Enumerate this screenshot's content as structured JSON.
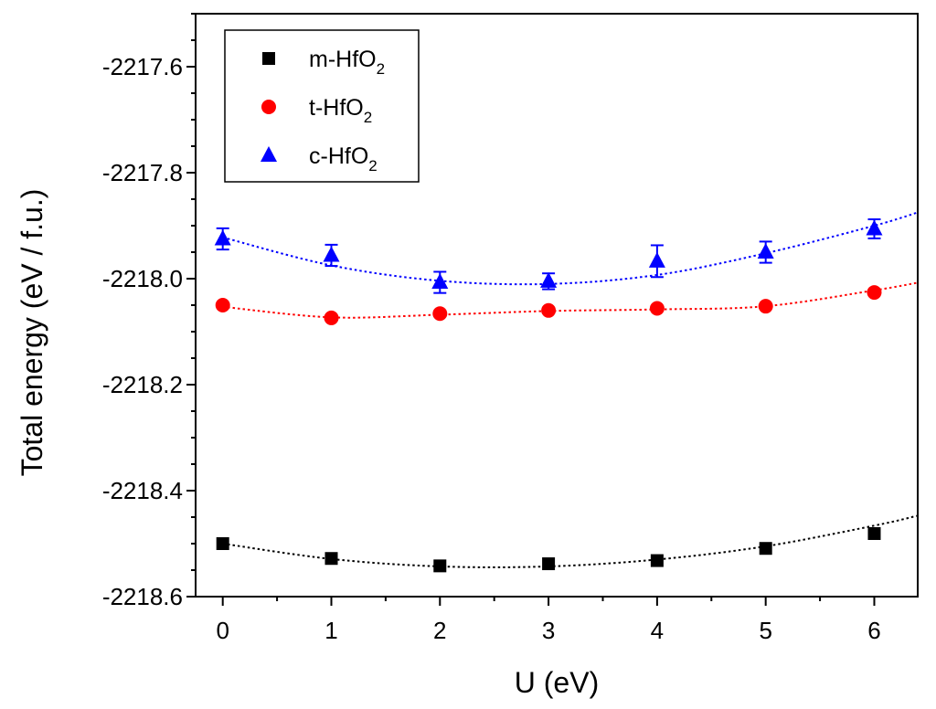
{
  "chart_data": {
    "type": "scatter",
    "xlabel": "U (eV)",
    "ylabel": "Total energy (eV / f.u.)",
    "xlim": [
      -0.25,
      6.4
    ],
    "ylim": [
      -2218.6,
      -2217.5
    ],
    "xticks": [
      0,
      1,
      2,
      3,
      4,
      5,
      6
    ],
    "xtick_labels": [
      "0",
      "1",
      "2",
      "3",
      "4",
      "5",
      "6"
    ],
    "yticks": [
      -2217.6,
      -2217.8,
      -2218.0,
      -2218.2,
      -2218.4,
      -2218.6
    ],
    "ytick_labels": [
      "-2217.6",
      "-2217.8",
      "-2218.0",
      "-2218.2",
      "-2218.4",
      "-2218.6"
    ],
    "legend_position": "top-left",
    "x": [
      0,
      1,
      2,
      3,
      4,
      5,
      6
    ],
    "series": [
      {
        "name": "m-HfO2",
        "label_main": "m-HfO",
        "label_sub": "2",
        "marker": "square",
        "color": "#000000",
        "values": [
          -2218.5,
          -2218.528,
          -2218.542,
          -2218.538,
          -2218.532,
          -2218.509,
          -2218.481
        ],
        "errors": [
          0,
          0,
          0,
          0,
          0,
          0,
          0
        ],
        "fit": [
          -2218.5,
          -2218.529,
          -2218.543,
          -2218.543,
          -2218.53,
          -2218.505,
          -2218.466
        ]
      },
      {
        "name": "t-HfO2",
        "label_main": "t-HfO",
        "label_sub": "2",
        "marker": "circle",
        "color": "#ff0000",
        "values": [
          -2218.05,
          -2218.074,
          -2218.066,
          -2218.06,
          -2218.056,
          -2218.052,
          -2218.026
        ],
        "errors": [
          0,
          0,
          0,
          0,
          0,
          0,
          0
        ],
        "fit": [
          -2218.053,
          -2218.073,
          -2218.068,
          -2218.061,
          -2218.058,
          -2218.052,
          -2218.022
        ]
      },
      {
        "name": "c-HfO2",
        "label_main": "c-HfO",
        "label_sub": "2",
        "marker": "triangle",
        "color": "#0000ff",
        "values": [
          -2217.925,
          -2217.956,
          -2218.007,
          -2218.005,
          -2217.967,
          -2217.95,
          -2217.906
        ],
        "errors": [
          0.02,
          0.02,
          0.02,
          0.015,
          0.03,
          0.02,
          0.018
        ],
        "fit": [
          -2217.922,
          -2217.975,
          -2218.004,
          -2218.01,
          -2217.993,
          -2217.952,
          -2217.9
        ]
      }
    ]
  }
}
